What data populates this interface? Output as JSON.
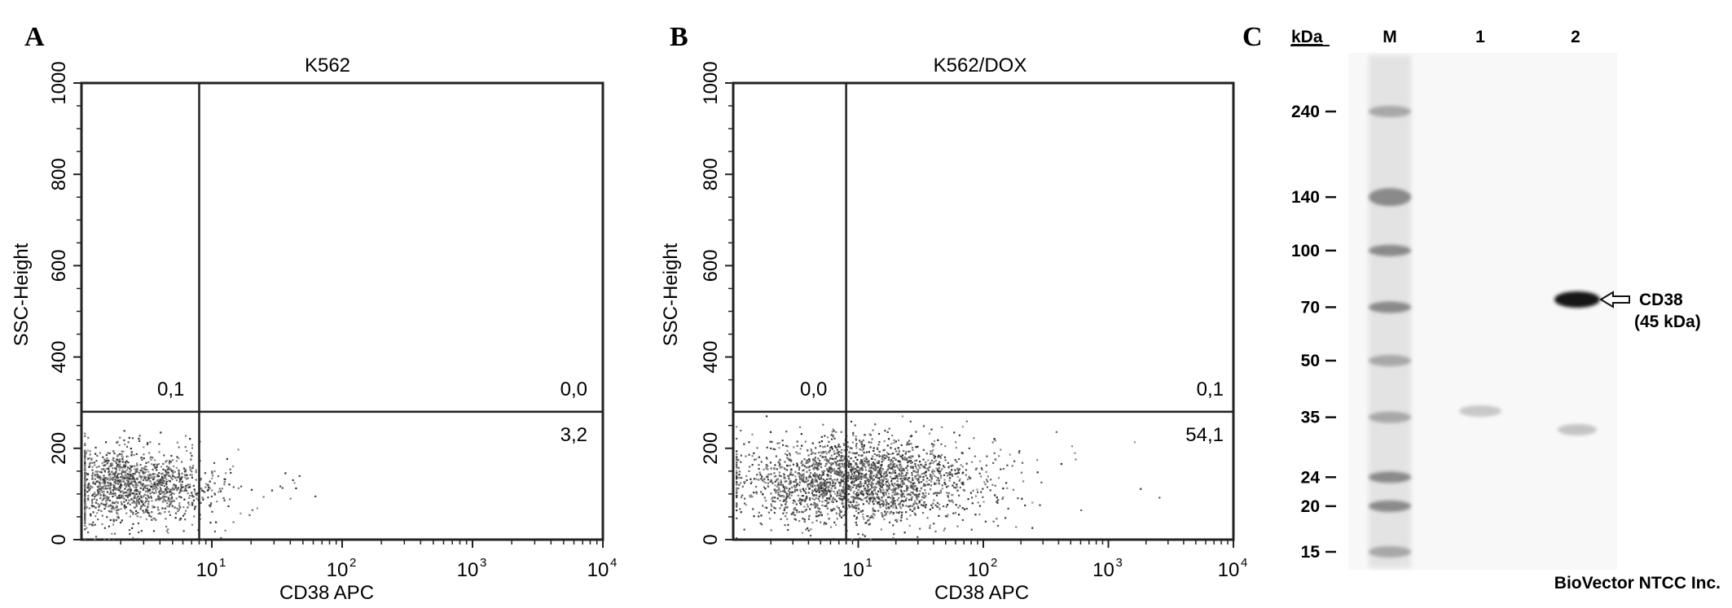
{
  "panels": {
    "a_letter": "A",
    "b_letter": "B",
    "c_letter": "C"
  },
  "watermark": "BioVector NTCC Inc.",
  "chart_data": [
    {
      "type": "scatter",
      "panel": "A",
      "title": "K562",
      "xlabel": "CD38  APC",
      "ylabel": "SSC-Height",
      "x_scale": "log",
      "xlim": [
        1,
        10000
      ],
      "ylim": [
        0,
        1000
      ],
      "x_tick_labels": [
        "10",
        "10",
        "10",
        "10"
      ],
      "x_tick_exponents": [
        "1",
        "2",
        "3",
        "4"
      ],
      "x_tick_values": [
        10,
        100,
        1000,
        10000
      ],
      "y_tick_labels": [
        "0",
        "200",
        "400",
        "600",
        "800",
        "1000"
      ],
      "y_tick_values": [
        0,
        200,
        400,
        600,
        800,
        1000
      ],
      "gate_x": 8,
      "gate_y": 280,
      "quadrants": {
        "upper_left": "0,1",
        "upper_right": "0,0",
        "lower_right": "3,2"
      },
      "population": {
        "center_x": 2.2,
        "center_y": 120,
        "spread_log_x": 0.3,
        "spread_y": 40,
        "fraction_cd38_positive": 0.032
      }
    },
    {
      "type": "scatter",
      "panel": "B",
      "title": "K562/DOX",
      "xlabel": "CD38  APC",
      "ylabel": "SSC-Height",
      "x_scale": "log",
      "xlim": [
        1,
        10000
      ],
      "ylim": [
        0,
        1000
      ],
      "x_tick_labels": [
        "10",
        "10",
        "10",
        "10"
      ],
      "x_tick_exponents": [
        "1",
        "2",
        "3",
        "4"
      ],
      "x_tick_values": [
        10,
        100,
        1000,
        10000
      ],
      "y_tick_labels": [
        "0",
        "200",
        "400",
        "600",
        "800",
        "1000"
      ],
      "y_tick_values": [
        0,
        200,
        400,
        600,
        800,
        1000
      ],
      "gate_x": 8,
      "gate_y": 280,
      "quadrants": {
        "upper_left": "0,0",
        "upper_right": "0,1",
        "lower_right": "54,1"
      },
      "population": {
        "center_x": 9,
        "center_y": 130,
        "spread_log_x": 0.45,
        "spread_y": 45,
        "fraction_cd38_positive": 0.541
      }
    },
    {
      "type": "gel",
      "panel": "C",
      "unit_label": "kDa",
      "lanes": [
        "M",
        "1",
        "2"
      ],
      "markers_kda": [
        240,
        140,
        100,
        70,
        50,
        35,
        24,
        20,
        15
      ],
      "marker_labels": [
        "240",
        "140",
        "100",
        "70",
        "50",
        "35",
        "24",
        "20",
        "15"
      ],
      "band_annotation": {
        "label_line1": "CD38",
        "label_line2": "(45 kDa)",
        "lane": "2",
        "kda": 45
      }
    }
  ]
}
